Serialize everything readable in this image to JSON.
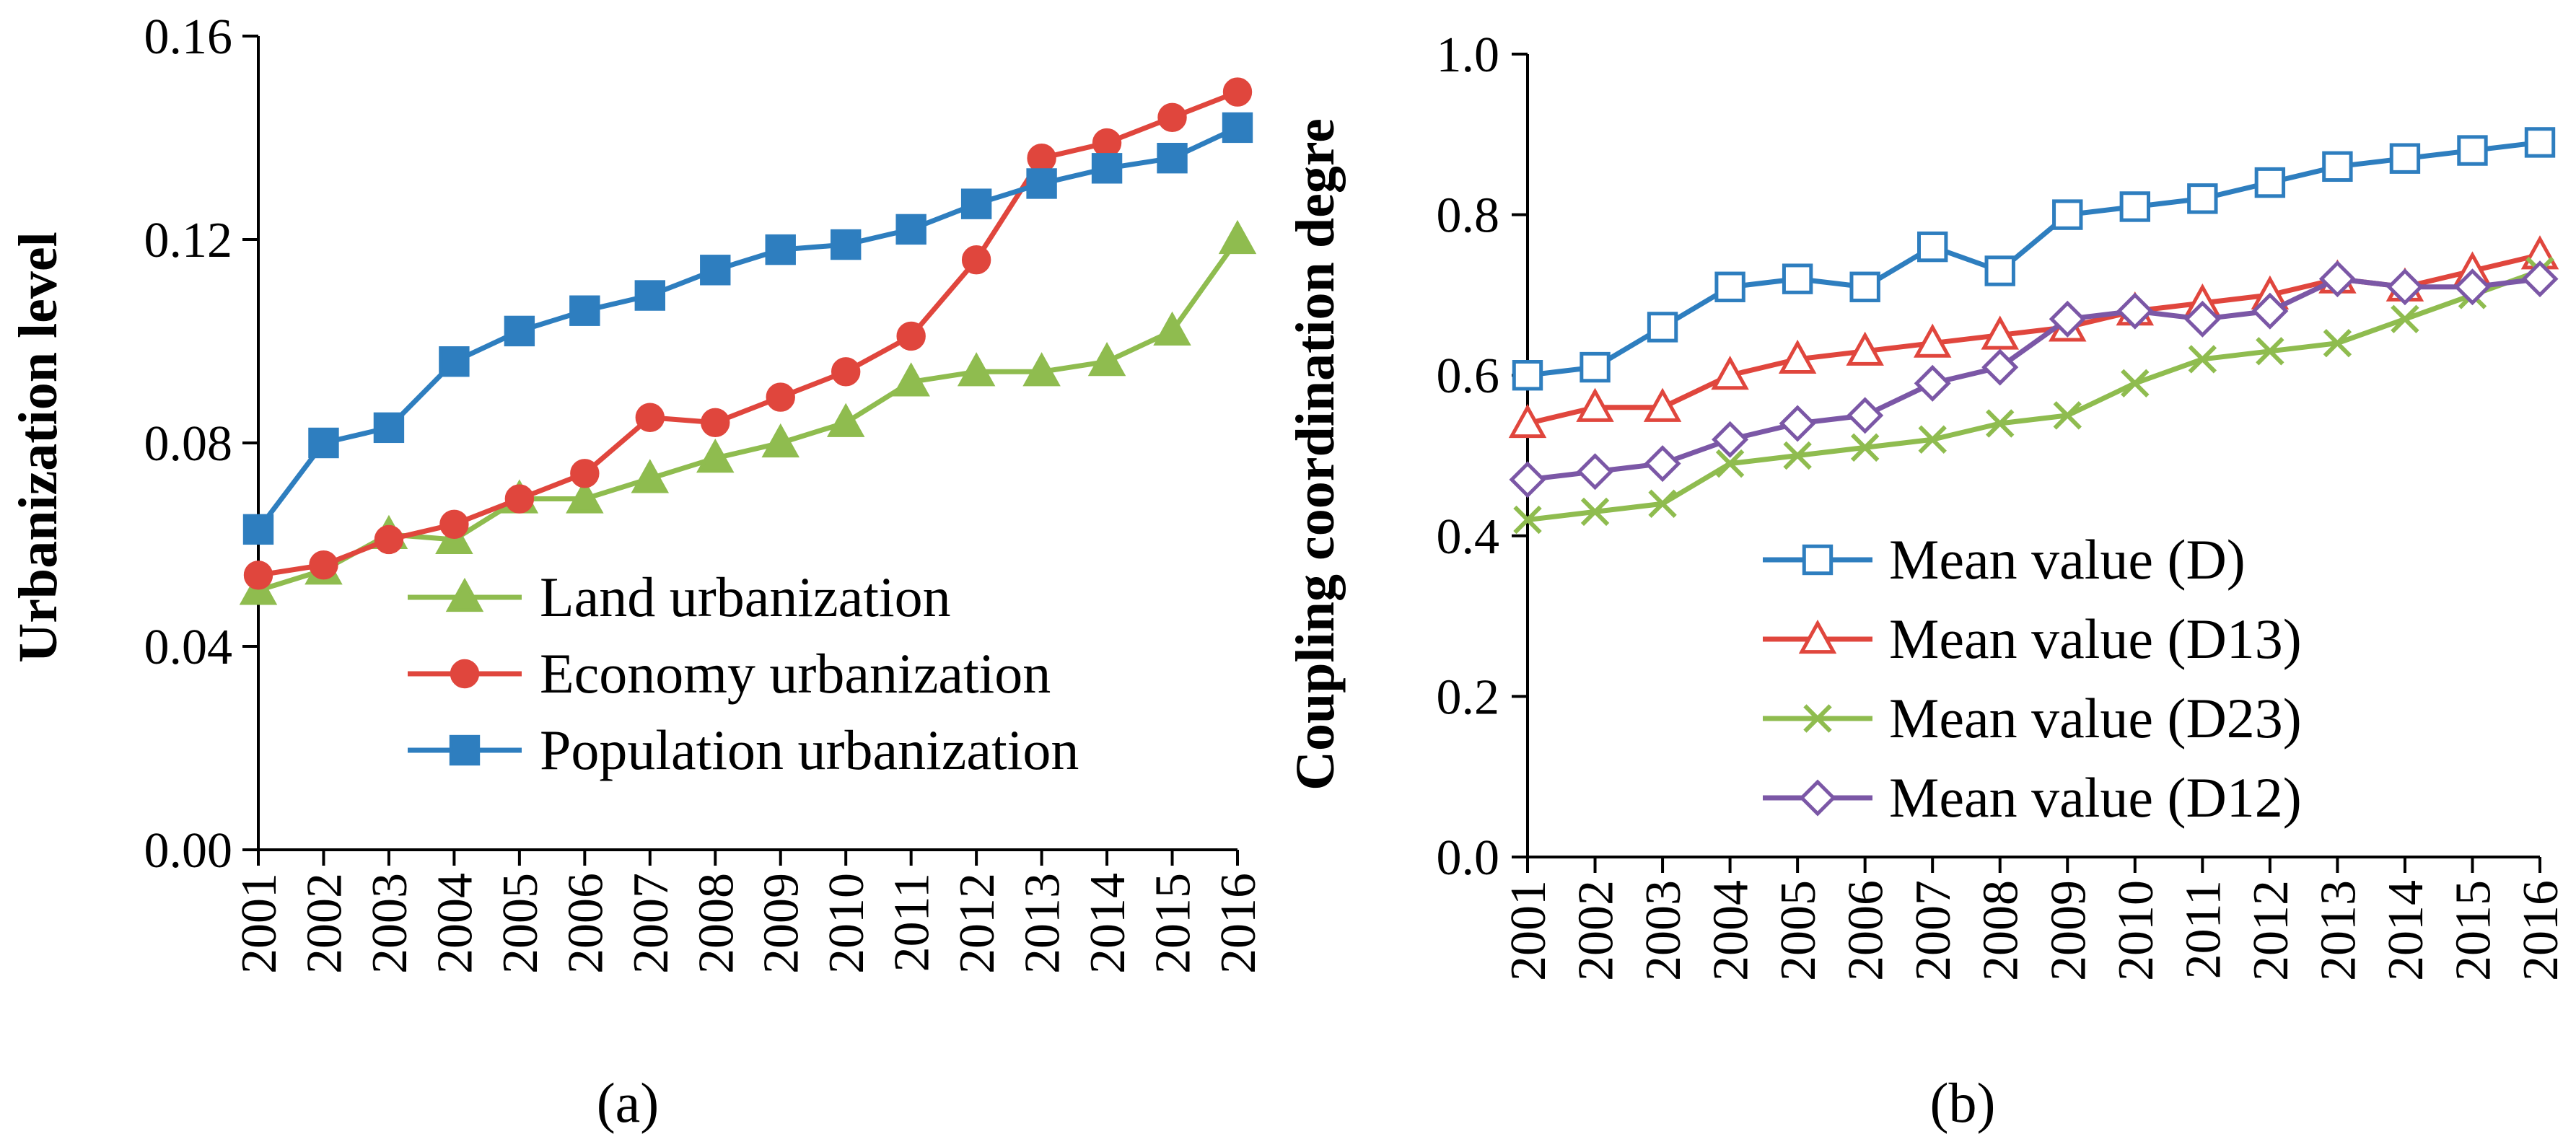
{
  "chart_data": [
    {
      "type": "line",
      "panel_label": "(a)",
      "title": "",
      "xlabel": "",
      "ylabel": "Urbanization level",
      "categories": [
        "2001",
        "2002",
        "2003",
        "2004",
        "2005",
        "2006",
        "2007",
        "2008",
        "2009",
        "2010",
        "2011",
        "2012",
        "2013",
        "2014",
        "2015",
        "2016"
      ],
      "ylim": [
        0,
        0.16
      ],
      "yticks": [
        0,
        0.04,
        0.08,
        0.12,
        0.16
      ],
      "ytick_labels": [
        "0.00",
        "0.04",
        "0.08",
        "0.12",
        "0.16"
      ],
      "grid": false,
      "legend_position": "center-right",
      "series": [
        {
          "name": "Land urbanization",
          "color": "#8fbc4f",
          "marker": "triangle-filled",
          "values": [
            0.051,
            0.055,
            0.062,
            0.061,
            0.069,
            0.069,
            0.073,
            0.077,
            0.08,
            0.084,
            0.092,
            0.094,
            0.094,
            0.096,
            0.102,
            0.12
          ]
        },
        {
          "name": "Economy urbanization",
          "color": "#e0463d",
          "marker": "circle-filled",
          "values": [
            0.054,
            0.056,
            0.061,
            0.064,
            0.069,
            0.074,
            0.085,
            0.084,
            0.089,
            0.094,
            0.101,
            0.116,
            0.136,
            0.139,
            0.144,
            0.149
          ]
        },
        {
          "name": "Population urbanization",
          "color": "#2e7ebf",
          "marker": "square-filled",
          "values": [
            0.063,
            0.08,
            0.083,
            0.096,
            0.102,
            0.106,
            0.109,
            0.114,
            0.118,
            0.119,
            0.122,
            0.127,
            0.131,
            0.134,
            0.136,
            0.142
          ]
        }
      ]
    },
    {
      "type": "line",
      "panel_label": "(b)",
      "title": "",
      "xlabel": "",
      "ylabel": "Coupling coordination degre",
      "categories": [
        "2001",
        "2002",
        "2003",
        "2004",
        "2005",
        "2006",
        "2007",
        "2008",
        "2009",
        "2010",
        "2011",
        "2012",
        "2013",
        "2014",
        "2015",
        "2016"
      ],
      "ylim": [
        0,
        1.0
      ],
      "yticks": [
        0,
        0.2,
        0.4,
        0.6,
        0.8,
        1.0
      ],
      "ytick_labels": [
        "0.0",
        "0.2",
        "0.4",
        "0.6",
        "0.8",
        "1.0"
      ],
      "grid": false,
      "legend_position": "center-right",
      "series": [
        {
          "name": "Mean value (D)",
          "color": "#2e7ebf",
          "marker": "square-open",
          "values": [
            0.6,
            0.61,
            0.66,
            0.71,
            0.72,
            0.71,
            0.76,
            0.73,
            0.8,
            0.81,
            0.82,
            0.84,
            0.86,
            0.87,
            0.88,
            0.89
          ]
        },
        {
          "name": "Mean value (D13)",
          "color": "#e0463d",
          "marker": "triangle-open",
          "values": [
            0.54,
            0.56,
            0.56,
            0.6,
            0.62,
            0.63,
            0.64,
            0.65,
            0.66,
            0.68,
            0.69,
            0.7,
            0.72,
            0.71,
            0.73,
            0.75
          ]
        },
        {
          "name": "Mean value (D23)",
          "color": "#8fbc4f",
          "marker": "x",
          "values": [
            0.42,
            0.43,
            0.44,
            0.49,
            0.5,
            0.51,
            0.52,
            0.54,
            0.55,
            0.59,
            0.62,
            0.63,
            0.64,
            0.67,
            0.7,
            0.73
          ]
        },
        {
          "name": "Mean value (D12)",
          "color": "#7b57a6",
          "marker": "diamond-open",
          "values": [
            0.47,
            0.48,
            0.49,
            0.52,
            0.54,
            0.55,
            0.59,
            0.61,
            0.67,
            0.68,
            0.67,
            0.68,
            0.72,
            0.71,
            0.71,
            0.72
          ]
        }
      ]
    }
  ]
}
